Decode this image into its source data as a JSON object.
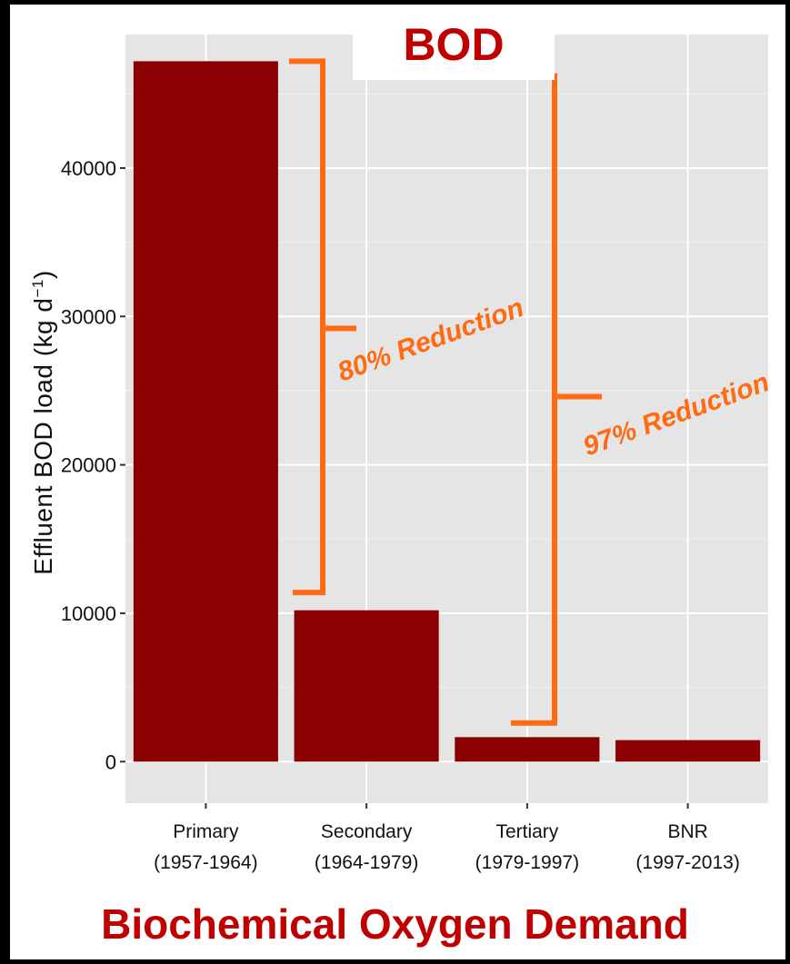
{
  "header": {
    "title": "BOD"
  },
  "caption": "Biochemical Oxygen Demand",
  "colors": {
    "bar": "#8b0000",
    "annotation": "#ff6a13",
    "title": "#c00000",
    "panel": "#e5e5e5",
    "grid": "#ffffff"
  },
  "chart_data": {
    "type": "bar",
    "title": "BOD",
    "ylabel": "Effluent BOD load (kg d",
    "ylabel_exp": "−1",
    "ylabel_close": ")",
    "ylim": [
      -2800,
      49000
    ],
    "yticks": [
      0,
      10000,
      20000,
      30000,
      40000
    ],
    "ytick_labels": [
      "0",
      "10000",
      "20000",
      "30000",
      "40000"
    ],
    "categories": [
      {
        "name": "Primary",
        "period": "(1957-1964)"
      },
      {
        "name": "Secondary",
        "period": "(1964-1979)"
      },
      {
        "name": "Tertiary",
        "period": "(1979-1997)"
      },
      {
        "name": "BNR",
        "period": "(1997-2013)"
      }
    ],
    "values": [
      47200,
      10200,
      1650,
      1450
    ],
    "grid": true,
    "annotations": [
      {
        "text": "80% Reduction",
        "from": 47200,
        "to": 11400,
        "mid": 29200
      },
      {
        "text": "97% Reduction",
        "from": 46200,
        "to": 2600,
        "mid": 24600
      }
    ]
  }
}
